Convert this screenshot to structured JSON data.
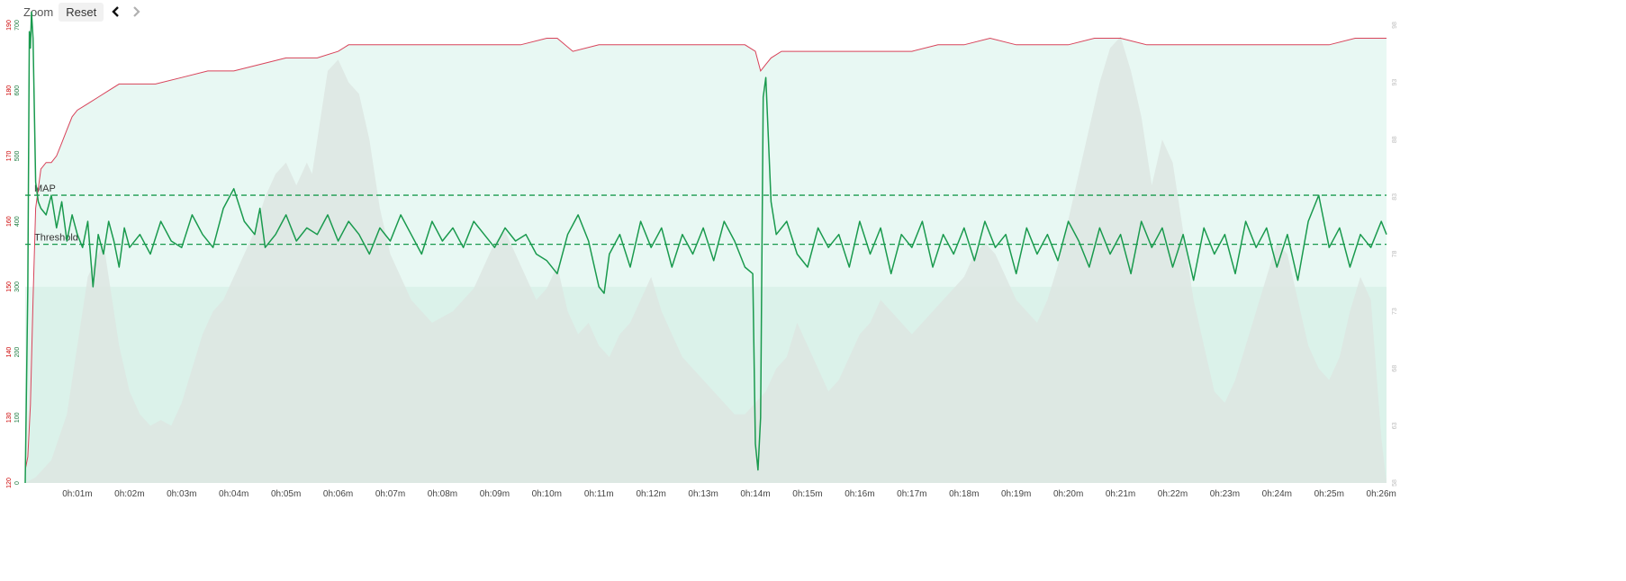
{
  "toolbar": {
    "zoom_label": "Zoom",
    "reset_label": "Reset",
    "prev_icon": "chevron-left-icon",
    "next_icon": "chevron-right-icon"
  },
  "axes": {
    "hr_unit": "bpm",
    "power_unit": "W",
    "cadence_unit": "rpm"
  },
  "colors": {
    "power": "#1a9a4e",
    "heart_rate": "#d8435a",
    "cadence_area": "#dde6e2",
    "background_fill": "#e8f8f3",
    "lower_fill": "#cfece2",
    "reference_line": "#1a9a4e",
    "left_hr_ticks": "#cc0000",
    "left_power_ticks": "#1a7a3e",
    "right_ticks": "#bbbbbb"
  },
  "chart_data": {
    "type": "line",
    "x_unit": "minutes",
    "xlim": [
      0,
      26.1
    ],
    "x_tick_labels": [
      "0h:01m",
      "0h:02m",
      "0h:03m",
      "0h:04m",
      "0h:05m",
      "0h:06m",
      "0h:07m",
      "0h:08m",
      "0h:09m",
      "0h:10m",
      "0h:11m",
      "0h:12m",
      "0h:13m",
      "0h:14m",
      "0h:15m",
      "0h:16m",
      "0h:17m",
      "0h:18m",
      "0h:19m",
      "0h:20m",
      "0h:21m",
      "0h:22m",
      "0h:23m",
      "0h:24m",
      "0h:25m",
      "0h:26m"
    ],
    "axes": {
      "heart_rate": {
        "ylim": [
          120,
          190
        ],
        "ticks": [
          120,
          130,
          140,
          150,
          160,
          170,
          180,
          190
        ]
      },
      "power": {
        "ylim": [
          0,
          700
        ],
        "ticks": [
          0,
          100,
          200,
          300,
          400,
          500,
          600,
          700
        ]
      },
      "cadence": {
        "ylim": [
          58,
          98
        ],
        "ticks": [
          58,
          63,
          68,
          73,
          78,
          83,
          88,
          93,
          98
        ]
      }
    },
    "annotations": [
      {
        "label": "MAP",
        "power": 440
      },
      {
        "label": "Threshold",
        "power": 365
      }
    ],
    "series": [
      {
        "axis": "heart_rate",
        "x": [
          0,
          0.05,
          0.1,
          0.15,
          0.2,
          0.3,
          0.4,
          0.5,
          0.6,
          0.7,
          0.8,
          0.9,
          1.0,
          1.2,
          1.4,
          1.6,
          1.8,
          2.0,
          2.5,
          3.0,
          3.5,
          4.0,
          4.5,
          5.0,
          5.5,
          5.6,
          6.0,
          6.2,
          6.5,
          7.0,
          7.5,
          8.0,
          8.5,
          9.0,
          9.5,
          10.0,
          10.2,
          10.5,
          11.0,
          11.5,
          12.0,
          12.5,
          13.0,
          13.5,
          13.8,
          14.0,
          14.1,
          14.2,
          14.3,
          14.5,
          15.0,
          15.5,
          16.0,
          16.5,
          17.0,
          17.5,
          18.0,
          18.5,
          19.0,
          19.5,
          20.0,
          20.5,
          21.0,
          21.5,
          22.0,
          22.5,
          23.0,
          23.5,
          24.0,
          24.5,
          25.0,
          25.5,
          26.0,
          26.1
        ],
        "y": [
          122,
          124,
          132,
          148,
          162,
          168,
          169,
          169,
          170,
          172,
          174,
          176,
          177,
          178,
          179,
          180,
          181,
          181,
          181,
          182,
          183,
          183,
          184,
          185,
          185,
          185,
          186,
          187,
          187,
          187,
          187,
          187,
          187,
          187,
          187,
          188,
          188,
          186,
          187,
          187,
          187,
          187,
          187,
          187,
          187,
          186,
          183,
          184,
          185,
          186,
          186,
          186,
          186,
          186,
          186,
          187,
          187,
          188,
          187,
          187,
          187,
          188,
          188,
          187,
          187,
          187,
          187,
          187,
          187,
          187,
          187,
          188,
          188,
          188
        ]
      },
      {
        "axis": "power",
        "x": [
          0,
          0.05,
          0.08,
          0.1,
          0.12,
          0.15,
          0.2,
          0.25,
          0.3,
          0.4,
          0.5,
          0.6,
          0.7,
          0.8,
          0.9,
          1.0,
          1.1,
          1.2,
          1.3,
          1.4,
          1.5,
          1.6,
          1.7,
          1.8,
          1.9,
          2.0,
          2.2,
          2.4,
          2.6,
          2.8,
          3.0,
          3.2,
          3.4,
          3.6,
          3.8,
          4.0,
          4.2,
          4.4,
          4.5,
          4.6,
          4.8,
          5.0,
          5.2,
          5.4,
          5.6,
          5.8,
          6.0,
          6.2,
          6.4,
          6.6,
          6.8,
          7.0,
          7.2,
          7.4,
          7.6,
          7.8,
          8.0,
          8.2,
          8.4,
          8.6,
          8.8,
          9.0,
          9.2,
          9.4,
          9.6,
          9.8,
          10.0,
          10.2,
          10.4,
          10.6,
          10.8,
          11.0,
          11.1,
          11.2,
          11.4,
          11.6,
          11.8,
          12.0,
          12.2,
          12.4,
          12.6,
          12.8,
          13.0,
          13.2,
          13.4,
          13.6,
          13.8,
          13.95,
          14.0,
          14.05,
          14.1,
          14.15,
          14.2,
          14.3,
          14.4,
          14.6,
          14.8,
          15.0,
          15.2,
          15.4,
          15.6,
          15.8,
          16.0,
          16.2,
          16.4,
          16.6,
          16.8,
          17.0,
          17.2,
          17.4,
          17.6,
          17.8,
          18.0,
          18.2,
          18.4,
          18.6,
          18.8,
          19.0,
          19.2,
          19.4,
          19.6,
          19.8,
          20.0,
          20.2,
          20.4,
          20.6,
          20.8,
          21.0,
          21.2,
          21.4,
          21.6,
          21.8,
          22.0,
          22.2,
          22.4,
          22.6,
          22.8,
          23.0,
          23.2,
          23.4,
          23.6,
          23.8,
          24.0,
          24.2,
          24.4,
          24.6,
          24.8,
          25.0,
          25.2,
          25.4,
          25.6,
          25.8,
          26.0,
          26.1
        ],
        "y": [
          0,
          300,
          690,
          665,
          720,
          680,
          460,
          430,
          420,
          410,
          440,
          390,
          430,
          370,
          410,
          380,
          360,
          400,
          300,
          380,
          350,
          400,
          370,
          330,
          390,
          360,
          380,
          350,
          400,
          370,
          360,
          410,
          380,
          360,
          420,
          450,
          400,
          380,
          420,
          360,
          380,
          410,
          370,
          390,
          380,
          410,
          370,
          400,
          380,
          350,
          390,
          370,
          410,
          380,
          350,
          400,
          370,
          390,
          360,
          400,
          380,
          360,
          390,
          370,
          380,
          350,
          340,
          320,
          380,
          410,
          370,
          300,
          290,
          350,
          380,
          330,
          400,
          360,
          390,
          330,
          380,
          350,
          390,
          340,
          400,
          370,
          330,
          320,
          60,
          20,
          100,
          590,
          620,
          430,
          380,
          400,
          350,
          330,
          390,
          360,
          380,
          330,
          400,
          350,
          390,
          320,
          380,
          360,
          400,
          330,
          380,
          350,
          390,
          340,
          400,
          360,
          380,
          320,
          390,
          350,
          380,
          340,
          400,
          370,
          330,
          390,
          350,
          380,
          320,
          400,
          360,
          390,
          330,
          380,
          310,
          390,
          350,
          380,
          320,
          400,
          360,
          390,
          330,
          380,
          310,
          400,
          440,
          360,
          390,
          330,
          380,
          360,
          400,
          380
        ]
      },
      {
        "axis": "cadence",
        "x": [
          0,
          0.2,
          0.5,
          0.8,
          1.0,
          1.2,
          1.5,
          1.7,
          1.8,
          1.9,
          2.0,
          2.2,
          2.4,
          2.6,
          2.8,
          3.0,
          3.2,
          3.4,
          3.6,
          3.8,
          4.0,
          4.2,
          4.4,
          4.6,
          4.8,
          5.0,
          5.2,
          5.4,
          5.5,
          5.6,
          5.8,
          6.0,
          6.2,
          6.4,
          6.6,
          6.8,
          7.0,
          7.2,
          7.4,
          7.6,
          7.8,
          8.0,
          8.2,
          8.4,
          8.6,
          8.8,
          9.0,
          9.2,
          9.4,
          9.6,
          9.8,
          10.0,
          10.2,
          10.4,
          10.6,
          10.8,
          11.0,
          11.2,
          11.4,
          11.6,
          11.8,
          12.0,
          12.2,
          12.4,
          12.6,
          12.8,
          13.0,
          13.2,
          13.4,
          13.6,
          13.8,
          14.0,
          14.2,
          14.4,
          14.6,
          14.8,
          15.0,
          15.2,
          15.4,
          15.6,
          15.8,
          16.0,
          16.2,
          16.4,
          16.6,
          16.8,
          17.0,
          17.2,
          17.4,
          17.6,
          17.8,
          18.0,
          18.2,
          18.4,
          18.6,
          18.8,
          19.0,
          19.2,
          19.4,
          19.6,
          19.8,
          20.0,
          20.2,
          20.4,
          20.6,
          20.8,
          21.0,
          21.2,
          21.4,
          21.6,
          21.8,
          22.0,
          22.2,
          22.4,
          22.6,
          22.8,
          23.0,
          23.2,
          23.4,
          23.6,
          23.8,
          24.0,
          24.2,
          24.4,
          24.6,
          24.8,
          25.0,
          25.2,
          25.4,
          25.6,
          25.8,
          26.0,
          26.1
        ],
        "y": [
          58,
          58.5,
          60,
          64,
          70,
          76,
          79,
          73,
          70,
          68,
          66,
          64,
          63,
          63.5,
          63,
          65,
          68,
          71,
          73,
          74,
          76,
          78,
          80,
          83,
          85,
          86,
          84,
          86,
          85,
          88,
          94,
          95,
          93,
          92,
          88,
          82,
          78,
          76,
          74,
          73,
          72,
          72.5,
          73,
          74,
          75,
          77,
          79,
          80,
          78,
          76,
          74,
          75,
          77,
          73,
          71,
          72,
          70,
          69,
          71,
          72,
          74,
          76,
          73,
          71,
          69,
          68,
          67,
          66,
          65,
          64,
          64,
          65,
          66,
          68,
          69,
          72,
          70,
          68,
          66,
          67,
          69,
          71,
          72,
          74,
          73,
          72,
          71,
          72,
          73,
          74,
          75,
          76,
          78,
          79,
          78,
          76,
          74,
          73,
          72,
          74,
          77,
          81,
          85,
          89,
          93,
          96,
          97,
          94,
          90,
          84,
          88,
          86,
          80,
          74,
          70,
          66,
          65,
          67,
          70,
          73,
          76,
          79,
          78,
          74,
          70,
          68,
          67,
          69,
          73,
          76,
          74,
          62,
          58
        ]
      }
    ]
  }
}
